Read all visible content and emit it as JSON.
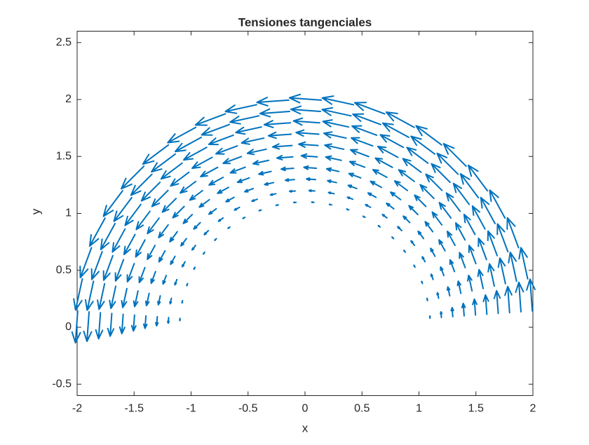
{
  "chart_data": {
    "type": "quiver",
    "title": "Tensiones tangenciales",
    "x_label": "x",
    "y_label": "y",
    "r": [
      1.1,
      1.2,
      1.3,
      1.4,
      1.5,
      1.6,
      1.7,
      1.8,
      1.9,
      2.0
    ],
    "theta_degrees": [
      4.09,
      12.27,
      20.45,
      28.64,
      36.82,
      45.0,
      53.18,
      61.36,
      69.55,
      77.73,
      85.91,
      94.09,
      102.27,
      110.45,
      118.64,
      126.82,
      135.0,
      143.18,
      151.36,
      159.55,
      167.73,
      175.91
    ],
    "magnitude": [
      0.02,
      0.05,
      0.08,
      0.11,
      0.14,
      0.17,
      0.2,
      0.23,
      0.26,
      0.28
    ],
    "color": "#0072bd",
    "xlim": [
      -2,
      2
    ],
    "ylim": [
      -0.6,
      2.6
    ],
    "xticks": [
      -2,
      -1.5,
      -1,
      -0.5,
      0,
      0.5,
      1,
      1.5,
      2
    ],
    "yticks": [
      -0.5,
      0,
      0.5,
      1,
      1.5,
      2,
      2.5
    ]
  }
}
